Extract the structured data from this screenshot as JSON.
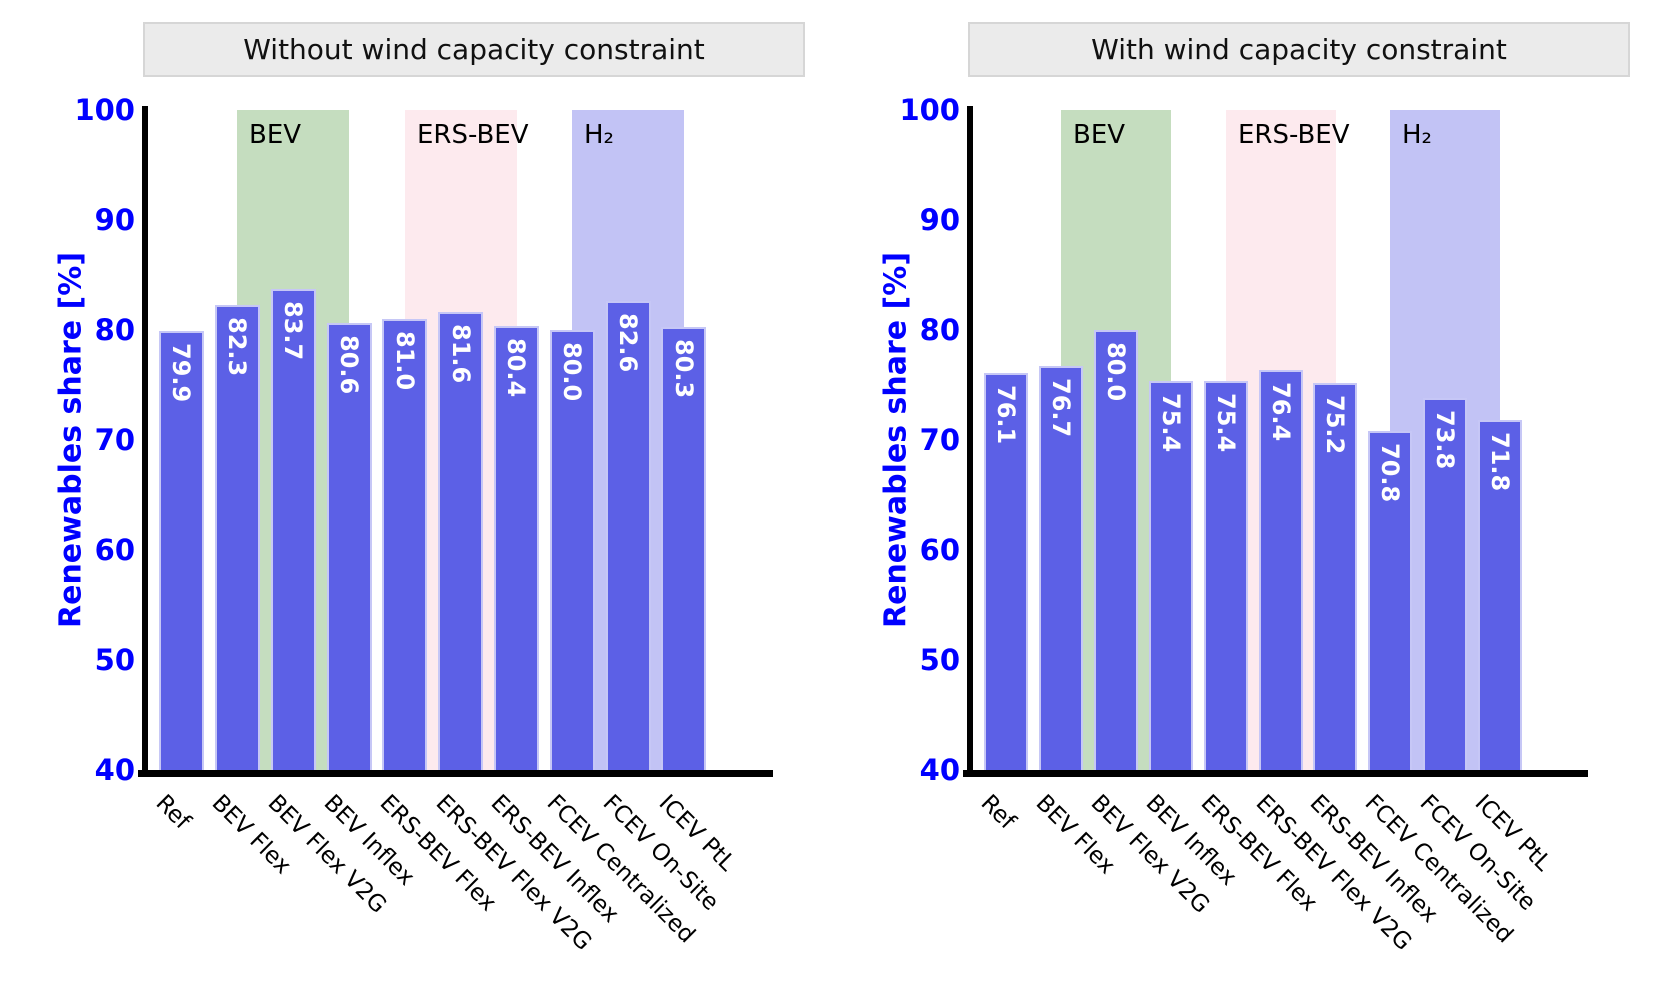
{
  "figure": {
    "background": "#ffffff"
  },
  "colors": {
    "bar_fill": "#5c60e6",
    "bar_edge": "#c9cbf5",
    "axis_line": "#000000",
    "blue_text": "#0000ff",
    "black_text": "#000000",
    "title_bg": "#ebebeb",
    "title_border": "#d6d6d6",
    "band_bev": "#c5ddbf",
    "band_ers_bev": "#fdeaee",
    "band_h2": "#c2c3f5"
  },
  "chart_data": [
    {
      "type": "bar",
      "title": "Without wind capacity constraint",
      "xlabel": "",
      "ylabel": "Renewables share [%]",
      "ylim": [
        40,
        100
      ],
      "yticks": [
        100,
        90,
        80,
        70,
        60,
        50,
        40
      ],
      "grid": false,
      "legend": "none",
      "categories": [
        "Ref",
        "BEV Flex",
        "BEV Flex V2G",
        "BEV Inflex",
        "ERS-BEV Flex",
        "ERS-BEV Flex V2G",
        "ERS-BEV Inflex",
        "FCEV Centralized",
        "FCEV On-Site",
        "ICEV PtL"
      ],
      "values": [
        79.9,
        82.3,
        83.7,
        80.6,
        81.0,
        81.6,
        80.4,
        80.0,
        82.6,
        80.3
      ],
      "bar_color": "#5c60e6",
      "group_bands": [
        {
          "label": "BEV",
          "from_index": 1,
          "to_index": 3,
          "color": "#c5ddbf"
        },
        {
          "label": "ERS-BEV",
          "from_index": 4,
          "to_index": 6,
          "color": "#fdeaee"
        },
        {
          "label": "H₂",
          "from_index": 7,
          "to_index": 9,
          "color": "#c2c3f5"
        }
      ]
    },
    {
      "type": "bar",
      "title": "With wind capacity constraint",
      "xlabel": "",
      "ylabel": "Renewables share [%]",
      "ylim": [
        40,
        100
      ],
      "yticks": [
        100,
        90,
        80,
        70,
        60,
        50,
        40
      ],
      "grid": false,
      "legend": "none",
      "categories": [
        "Ref",
        "BEV Flex",
        "BEV Flex V2G",
        "BEV Inflex",
        "ERS-BEV Flex",
        "ERS-BEV Flex V2G",
        "ERS-BEV Inflex",
        "FCEV Centralized",
        "FCEV On-Site",
        "ICEV PtL"
      ],
      "values": [
        76.1,
        76.7,
        80.0,
        75.4,
        75.4,
        76.4,
        75.2,
        70.8,
        73.8,
        71.8
      ],
      "bar_color": "#5c60e6",
      "group_bands": [
        {
          "label": "BEV",
          "from_index": 1,
          "to_index": 3,
          "color": "#c5ddbf"
        },
        {
          "label": "ERS-BEV",
          "from_index": 4,
          "to_index": 6,
          "color": "#fdeaee"
        },
        {
          "label": "H₂",
          "from_index": 7,
          "to_index": 9,
          "color": "#c2c3f5"
        }
      ]
    }
  ]
}
